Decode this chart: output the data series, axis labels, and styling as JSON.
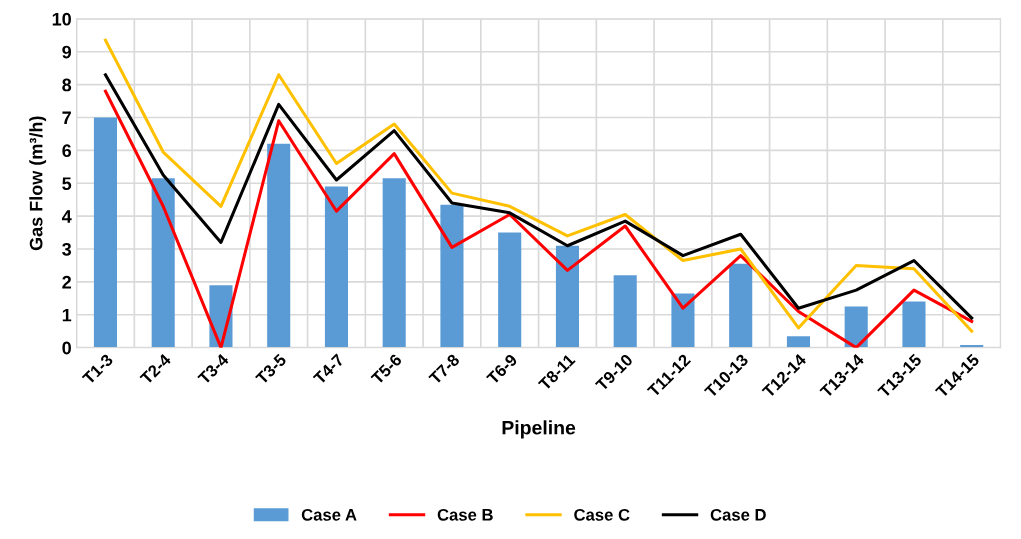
{
  "chart_data": {
    "type": "bar",
    "xlabel": "Pipeline",
    "ylabel": "Gas Flow (m³/h)",
    "categories": [
      "T1-3",
      "T2-4",
      "T3-4",
      "T3-5",
      "T4-7",
      "T5-6",
      "T7-8",
      "T6-9",
      "T8-11",
      "T9-10",
      "T11-12",
      "T10-13",
      "T12-14",
      "T13-14",
      "T13-15",
      "T14-15"
    ],
    "series": [
      {
        "name": "Case A",
        "color": "#5b9bd5",
        "values": [
          7.0,
          5.15,
          1.9,
          6.2,
          4.9,
          5.15,
          4.35,
          3.5,
          3.1,
          2.2,
          1.65,
          2.55,
          0.35,
          1.25,
          1.4,
          0.08
        ]
      },
      {
        "name": "Case B",
        "type": "line",
        "color": "#ff0000",
        "values": [
          7.8,
          4.3,
          0,
          6.9,
          4.15,
          5.9,
          3.05,
          4.05,
          2.35,
          3.7,
          1.2,
          2.8,
          1.1,
          0,
          1.75,
          0.8
        ]
      },
      {
        "name": "Case C",
        "type": "line",
        "color": "#ffc000",
        "values": [
          9.35,
          5.95,
          4.3,
          8.3,
          5.6,
          6.8,
          4.7,
          4.3,
          3.4,
          4.05,
          2.65,
          3.0,
          0.6,
          2.5,
          2.4,
          0.5
        ]
      },
      {
        "name": "Case D",
        "type": "line",
        "color": "#000000",
        "values": [
          8.3,
          5.25,
          3.2,
          7.4,
          5.1,
          6.6,
          4.4,
          4.1,
          3.1,
          3.85,
          2.8,
          3.45,
          1.2,
          1.75,
          2.65,
          0.9
        ]
      }
    ],
    "ylim": [
      0,
      10
    ],
    "yticks": [
      0,
      1,
      2,
      3,
      4,
      5,
      6,
      7,
      8,
      9,
      10
    ],
    "grid": true,
    "legend": "bottom"
  }
}
